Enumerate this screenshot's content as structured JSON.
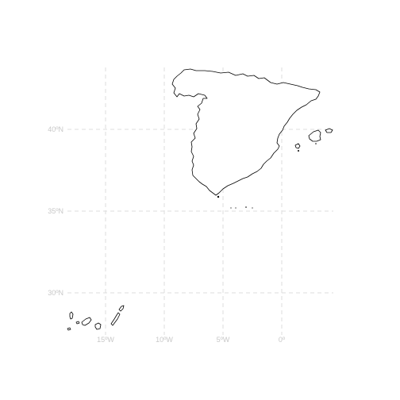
{
  "map": {
    "region": "Spain",
    "longitude_ticks": [
      {
        "value": -15,
        "label": "15ºW"
      },
      {
        "value": -10,
        "label": "10ºW"
      },
      {
        "value": -5,
        "label": "5ºW"
      },
      {
        "value": 0,
        "label": "0º"
      }
    ],
    "latitude_ticks": [
      {
        "value": 40,
        "label": "40ºN"
      },
      {
        "value": 35,
        "label": "35ºN"
      },
      {
        "value": 30,
        "label": "30ºN"
      }
    ],
    "gridlines": "dashed",
    "colors": {
      "outline": "#000000",
      "grid": "#dcdcdc",
      "tick_label": "#c8c8c8",
      "land": "#ffffff"
    }
  }
}
